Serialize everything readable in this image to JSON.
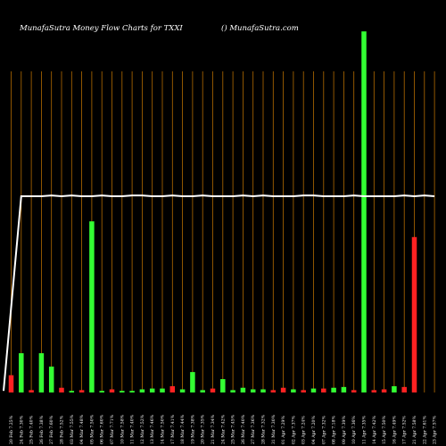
{
  "header": {
    "title": "MunafaSutra  Money Flow  Charts for TXXI",
    "watermark": "() MunafaSutra.com"
  },
  "colors": {
    "background": "#000000",
    "gridline": "#b36b00",
    "up": "#33ff33",
    "down": "#ff2222",
    "line": "#ffffff"
  },
  "chart_data": {
    "type": "bar",
    "categories": [
      "20 Feb 7.25%",
      "24 Feb 7.30%",
      "25 Feb 7.40%",
      "26 Feb 7.38%",
      "27 Feb 7.60%",
      "28 Feb 7.52%",
      "03 Mar 7.55%",
      "04 Mar 7.48%",
      "05 Mar 7.50%",
      "06 Mar 7.60%",
      "07 Mar 7.71%",
      "10 Mar 7.58%",
      "11 Mar 7.40%",
      "12 Mar 7.52%",
      "13 Mar 7.46%",
      "14 Mar 7.50%",
      "17 Mar 7.41%",
      "18 Mar 7.44%",
      "19 Mar 7.38%",
      "20 Mar 7.35%",
      "21 Mar 7.34%",
      "24 Mar 7.42%",
      "25 Mar 7.45%",
      "26 Mar 7.40%",
      "27 Mar 7.36%",
      "28 Mar 7.32%",
      "31 Mar 7.30%",
      "01 Apr 7.29%",
      "02 Apr 7.37%",
      "03 Apr 7.24%",
      "04 Apr 7.20%",
      "07 Apr 7.32%",
      "08 Apr 7.18%",
      "09 Apr 7.39%",
      "10 Apr 7.36%",
      "11 Apr 7.35%",
      "14 Apr 7.42%",
      "15 Apr 7.50%",
      "16 Apr 7.49%",
      "17 Apr 7.52%",
      "21 Apr 7.58%",
      "22 Apr 7.61%",
      "23 Apr 7.57%"
    ],
    "series": [
      {
        "values": [
          22,
          50,
          3,
          50,
          33,
          6,
          2,
          3,
          218,
          2,
          4,
          2,
          2,
          4,
          5,
          5,
          8,
          4,
          26,
          3,
          5,
          17,
          3,
          6,
          4,
          4,
          3,
          6,
          4,
          3,
          5,
          5,
          6,
          7,
          3,
          460,
          3,
          4,
          8,
          7,
          198,
          0,
          0
        ],
        "directions": [
          "down",
          "up",
          "down",
          "up",
          "up",
          "down",
          "up",
          "down",
          "up",
          "up",
          "down",
          "up",
          "up",
          "up",
          "up",
          "up",
          "down",
          "up",
          "up",
          "up",
          "down",
          "up",
          "up",
          "up",
          "up",
          "up",
          "down",
          "down",
          "up",
          "down",
          "up",
          "down",
          "up",
          "up",
          "down",
          "up",
          "down",
          "down",
          "up",
          "down",
          "down",
          "up",
          "up"
        ]
      }
    ],
    "line": [
      2,
      250,
      250,
      250,
      251,
      250,
      251,
      250,
      250,
      251,
      250,
      250,
      251,
      251,
      250,
      250,
      251,
      250,
      250,
      251,
      250,
      250,
      250,
      251,
      250,
      251,
      250,
      250,
      250,
      251,
      251,
      250,
      250,
      250,
      251,
      250,
      250,
      250,
      250,
      251,
      250,
      251,
      250
    ],
    "ylim": [
      0,
      500
    ],
    "grid": true
  }
}
